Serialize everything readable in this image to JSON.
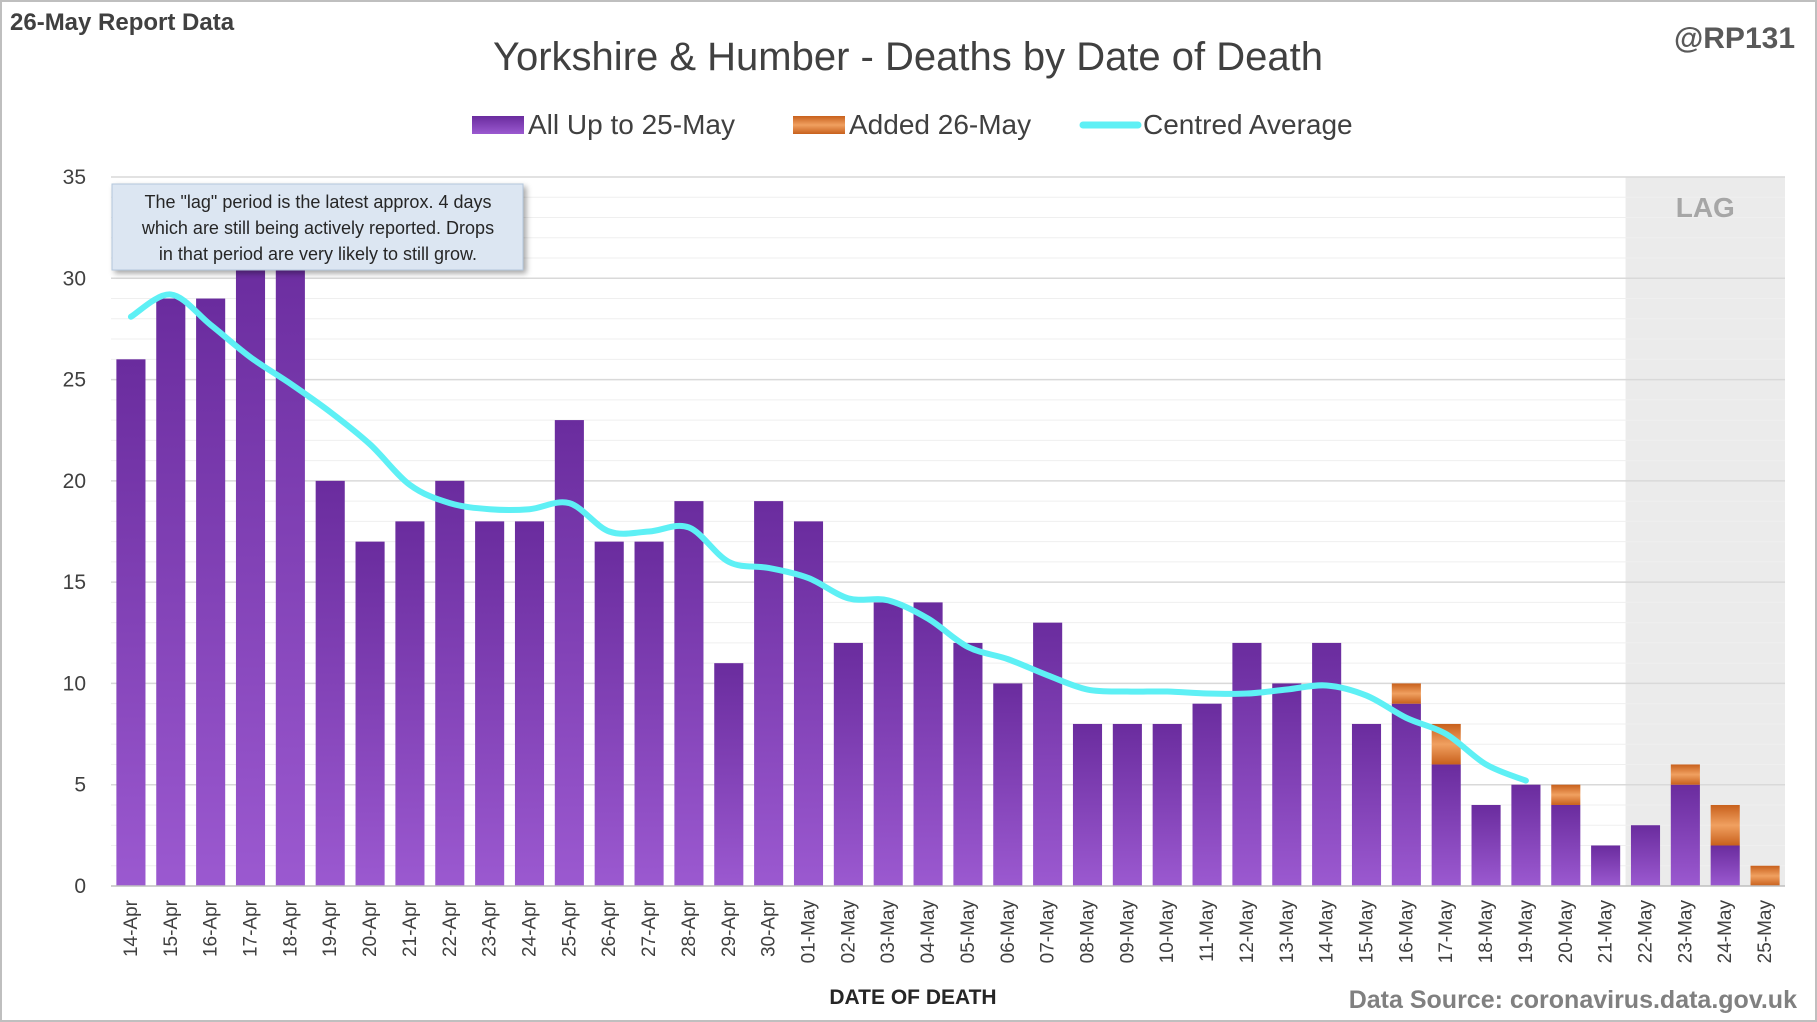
{
  "header": {
    "report_label": "26-May Report Data",
    "author": "@RP131",
    "source": "Data Source: coronavirus.data.gov.uk"
  },
  "annotation": {
    "lines": [
      "The \"lag\" period is the latest approx. 4 days",
      "which are still being actively reported.  Drops",
      "in that period are very likely to still grow."
    ]
  },
  "lag_label": "LAG",
  "colors": {
    "bar_top": "#6a2c9e",
    "bar_bottom": "#9b59d0",
    "added": "#e07a2e",
    "average": "#5ef0f5",
    "lag_shade": "#ebebeb",
    "grid": "#d9d9d9"
  },
  "chart_data": {
    "type": "bar",
    "title": "Yorkshire & Humber - Deaths by Date of Death",
    "xlabel": "DATE OF DEATH",
    "ylabel": "",
    "ylim": [
      0,
      35
    ],
    "yticks": [
      0,
      5,
      10,
      15,
      20,
      25,
      30,
      35
    ],
    "grid": true,
    "legend_position": "top",
    "stacked": true,
    "lag_categories": [
      "22-May",
      "23-May",
      "24-May",
      "25-May"
    ],
    "categories": [
      "14-Apr",
      "15-Apr",
      "16-Apr",
      "17-Apr",
      "18-Apr",
      "19-Apr",
      "20-Apr",
      "21-Apr",
      "22-Apr",
      "23-Apr",
      "24-Apr",
      "25-Apr",
      "26-Apr",
      "27-Apr",
      "28-Apr",
      "29-Apr",
      "30-Apr",
      "01-May",
      "02-May",
      "03-May",
      "04-May",
      "05-May",
      "06-May",
      "07-May",
      "08-May",
      "09-May",
      "10-May",
      "11-May",
      "12-May",
      "13-May",
      "14-May",
      "15-May",
      "16-May",
      "17-May",
      "18-May",
      "19-May",
      "20-May",
      "21-May",
      "22-May",
      "23-May",
      "24-May",
      "25-May"
    ],
    "series": [
      {
        "name": "All Up to 25-May",
        "type": "bar",
        "values": [
          26,
          29,
          29,
          31,
          32,
          20,
          17,
          18,
          20,
          18,
          18,
          23,
          17,
          17,
          19,
          11,
          19,
          18,
          12,
          14,
          14,
          12,
          10,
          13,
          8,
          8,
          8,
          9,
          12,
          10,
          12,
          8,
          9,
          6,
          4,
          5,
          4,
          2,
          3,
          5,
          2,
          0
        ]
      },
      {
        "name": "Added 26-May",
        "type": "bar",
        "values": [
          0,
          0,
          0,
          0,
          0,
          0,
          0,
          0,
          0,
          0,
          0,
          0,
          0,
          0,
          0,
          0,
          0,
          0,
          0,
          0,
          0,
          0,
          0,
          0,
          0,
          0,
          0,
          0,
          0,
          0,
          0,
          0,
          1,
          2,
          0,
          0,
          1,
          0,
          0,
          1,
          2,
          1
        ]
      },
      {
        "name": "Centred Average",
        "type": "line",
        "values": [
          28.1,
          29.2,
          27.7,
          26.1,
          24.8,
          23.4,
          21.8,
          19.8,
          18.9,
          18.6,
          18.6,
          18.9,
          17.5,
          17.5,
          17.7,
          16.0,
          15.7,
          15.2,
          14.2,
          14.1,
          13.2,
          11.8,
          11.2,
          10.4,
          9.7,
          9.6,
          9.6,
          9.5,
          9.5,
          9.7,
          9.9,
          9.4,
          8.3,
          7.5,
          6.0,
          5.2,
          null,
          null,
          null,
          null,
          null,
          null
        ]
      }
    ]
  }
}
